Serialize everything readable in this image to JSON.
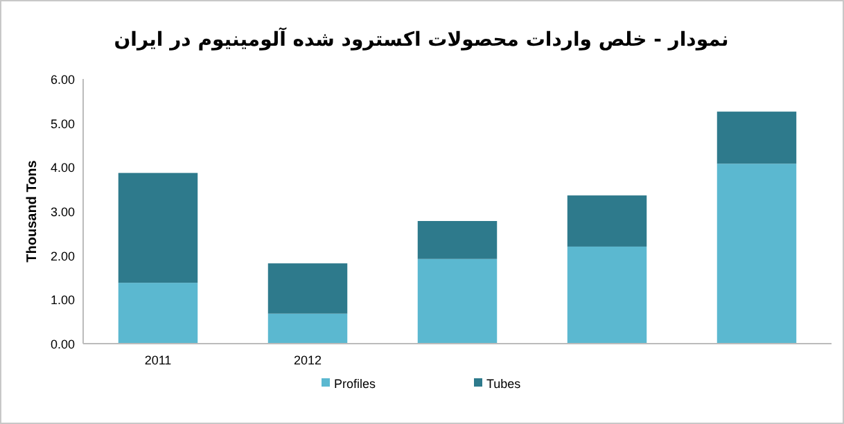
{
  "chart_data": {
    "type": "bar",
    "stacked": true,
    "title": "نمودار - خلص واردات محصولات اکسترود شده آلومینیوم در ایران",
    "ylabel": "Thousand Tons",
    "categories": [
      "2011",
      "2012",
      null,
      null,
      null
    ],
    "series": [
      {
        "name": "Profiles",
        "color": "#5bb8d0",
        "values": [
          1.38,
          0.68,
          1.92,
          2.2,
          4.08
        ]
      },
      {
        "name": "Tubes",
        "color": "#2e7a8c",
        "values": [
          2.49,
          1.14,
          0.86,
          1.16,
          1.18
        ]
      }
    ],
    "ylim": [
      0,
      6
    ],
    "yticks": [
      {
        "value": 0,
        "label": "0.00"
      },
      {
        "value": 1,
        "label": "1.00"
      },
      {
        "value": 2,
        "label": "2.00"
      },
      {
        "value": 3,
        "label": "3.00"
      },
      {
        "value": 4,
        "label": "4.00"
      },
      {
        "value": 5,
        "label": "5.00"
      },
      {
        "value": 6,
        "label": "6.00"
      }
    ],
    "legend": "bottom"
  }
}
